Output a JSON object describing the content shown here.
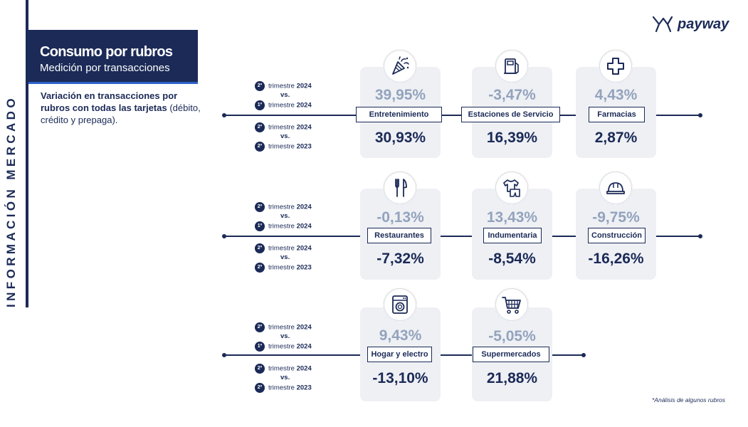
{
  "side_label": "INFORMACIÓN MERCADO",
  "header": {
    "title": "Consumo por rubros",
    "subtitle": "Medición por transacciones"
  },
  "description": {
    "bold": "Variación en transacciones por rubros con todas las tarjetas",
    "normal": " (débito, crédito y prepaga)."
  },
  "logo": {
    "wordmark": "payway",
    "icon": "payway-logo-icon"
  },
  "comparison": {
    "a1": {
      "badge": "2º",
      "text": "trimestre",
      "year": "2024"
    },
    "vs": "vs.",
    "a2": {
      "badge": "1º",
      "text": "trimestre",
      "year": "2024"
    },
    "b1": {
      "badge": "2º",
      "text": "trimestre",
      "year": "2024"
    },
    "b2": {
      "badge": "2º",
      "text": "trimestre",
      "year": "2023"
    }
  },
  "rows": [
    {
      "items": [
        {
          "label": "Entretenimiento",
          "top": "39,95%",
          "bottom": "30,93%",
          "icon": "party-popper-icon"
        },
        {
          "label": "Estaciones de Servicio",
          "top": "-3,47%",
          "bottom": "16,39%",
          "icon": "fuel-pump-icon"
        },
        {
          "label": "Farmacias",
          "top": "4,43%",
          "bottom": "2,87%",
          "icon": "pharmacy-cross-icon"
        }
      ]
    },
    {
      "items": [
        {
          "label": "Restaurantes",
          "top": "-0,13%",
          "bottom": "-7,32%",
          "icon": "fork-knife-icon"
        },
        {
          "label": "Indumentaria",
          "top": "13,43%",
          "bottom": "-8,54%",
          "icon": "clothing-icon"
        },
        {
          "label": "Construcción",
          "top": "-9,75%",
          "bottom": "-16,26%",
          "icon": "hard-hat-icon"
        }
      ]
    },
    {
      "items": [
        {
          "label": "Hogar y electro",
          "top": "9,43%",
          "bottom": "-13,10%",
          "icon": "washing-machine-icon"
        },
        {
          "label": "Supermercados",
          "top": "-5,05%",
          "bottom": "21,88%",
          "icon": "shopping-cart-icon"
        }
      ]
    }
  ],
  "footnote": "*Análisis de algunos rubros",
  "colors": {
    "navy": "#1b2a57",
    "muted": "#93a3bd",
    "card": "#eef0f4"
  }
}
